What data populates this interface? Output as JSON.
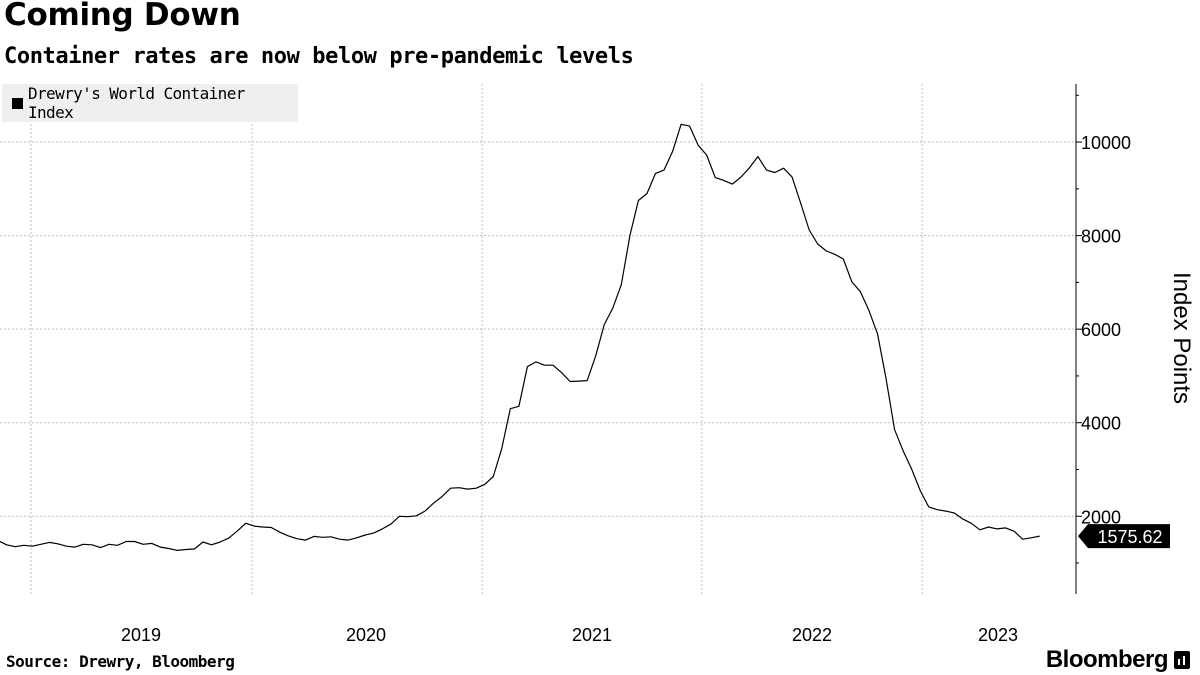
{
  "header": {
    "title": "Coming Down",
    "subtitle": "Container rates are now below pre-pandemic levels"
  },
  "footer": {
    "source": "Source: Drewry, Bloomberg",
    "logo": "Bloomberg"
  },
  "colors": {
    "line": "#000000",
    "grid": "#bdbdbd",
    "legend_bg": "#efefef",
    "badge_bg": "#000000",
    "badge_text": "#ffffff"
  },
  "chart_data": {
    "type": "line",
    "title": "Coming Down",
    "subtitle": "Container rates are now below pre-pandemic levels",
    "xlabel": "",
    "ylabel": "Index Points",
    "ylim": [
      0,
      11200
    ],
    "y_axis_side": "right",
    "yticks": [
      2000,
      4000,
      6000,
      8000,
      10000
    ],
    "ytick_labels": [
      "2000",
      "4000",
      "6000",
      "8000",
      "10000"
    ],
    "xtick_labels": [
      "2019",
      "2020",
      "2021",
      "2022",
      "2023"
    ],
    "grid": true,
    "legend_position": "top-left",
    "last_value_label": "1575.62",
    "series": [
      {
        "name": "Drewry's World Container Index",
        "points": [
          [
            "2018-06-07",
            1790
          ],
          [
            "2018-06-21",
            1710
          ],
          [
            "2018-07-05",
            1650
          ],
          [
            "2018-07-19",
            1630
          ],
          [
            "2018-08-02",
            1590
          ],
          [
            "2018-08-16",
            1780
          ],
          [
            "2018-08-30",
            1720
          ],
          [
            "2018-09-13",
            1760
          ],
          [
            "2018-09-27",
            1720
          ],
          [
            "2018-10-11",
            1640
          ],
          [
            "2018-10-25",
            1620
          ],
          [
            "2018-11-08",
            1480
          ],
          [
            "2018-11-22",
            1390
          ],
          [
            "2018-12-06",
            1350
          ],
          [
            "2018-12-20",
            1380
          ],
          [
            "2019-01-03",
            1360
          ],
          [
            "2019-01-17",
            1400
          ],
          [
            "2019-01-31",
            1440
          ],
          [
            "2019-02-14",
            1410
          ],
          [
            "2019-02-28",
            1360
          ],
          [
            "2019-03-14",
            1340
          ],
          [
            "2019-03-28",
            1400
          ],
          [
            "2019-04-11",
            1390
          ],
          [
            "2019-04-25",
            1330
          ],
          [
            "2019-05-09",
            1400
          ],
          [
            "2019-05-23",
            1380
          ],
          [
            "2019-06-06",
            1460
          ],
          [
            "2019-06-20",
            1460
          ],
          [
            "2019-07-04",
            1400
          ],
          [
            "2019-07-18",
            1420
          ],
          [
            "2019-08-01",
            1340
          ],
          [
            "2019-08-15",
            1310
          ],
          [
            "2019-08-29",
            1270
          ],
          [
            "2019-09-12",
            1290
          ],
          [
            "2019-09-26",
            1300
          ],
          [
            "2019-10-10",
            1450
          ],
          [
            "2019-10-24",
            1390
          ],
          [
            "2019-11-07",
            1450
          ],
          [
            "2019-11-21",
            1530
          ],
          [
            "2019-12-05",
            1680
          ],
          [
            "2019-12-19",
            1850
          ],
          [
            "2020-01-02",
            1790
          ],
          [
            "2020-01-16",
            1770
          ],
          [
            "2020-01-30",
            1760
          ],
          [
            "2020-02-13",
            1660
          ],
          [
            "2020-02-27",
            1580
          ],
          [
            "2020-03-12",
            1520
          ],
          [
            "2020-03-26",
            1490
          ],
          [
            "2020-04-09",
            1570
          ],
          [
            "2020-04-23",
            1550
          ],
          [
            "2020-05-07",
            1560
          ],
          [
            "2020-05-21",
            1510
          ],
          [
            "2020-06-04",
            1490
          ],
          [
            "2020-06-18",
            1540
          ],
          [
            "2020-07-02",
            1600
          ],
          [
            "2020-07-16",
            1640
          ],
          [
            "2020-07-30",
            1730
          ],
          [
            "2020-08-13",
            1830
          ],
          [
            "2020-08-27",
            2000
          ],
          [
            "2020-09-10",
            1990
          ],
          [
            "2020-09-24",
            2010
          ],
          [
            "2020-10-08",
            2110
          ],
          [
            "2020-10-22",
            2280
          ],
          [
            "2020-11-05",
            2420
          ],
          [
            "2020-11-19",
            2600
          ],
          [
            "2020-12-03",
            2610
          ],
          [
            "2020-12-17",
            2580
          ],
          [
            "2020-12-31",
            2600
          ],
          [
            "2021-01-14",
            2680
          ],
          [
            "2021-01-28",
            2850
          ],
          [
            "2021-02-11",
            3450
          ],
          [
            "2021-02-25",
            4300
          ],
          [
            "2021-03-11",
            4350
          ],
          [
            "2021-03-25",
            5200
          ],
          [
            "2021-04-08",
            5300
          ],
          [
            "2021-04-22",
            5230
          ],
          [
            "2021-05-06",
            5230
          ],
          [
            "2021-05-20",
            5070
          ],
          [
            "2021-06-03",
            4880
          ],
          [
            "2021-06-17",
            4890
          ],
          [
            "2021-07-01",
            4900
          ],
          [
            "2021-07-15",
            5430
          ],
          [
            "2021-07-29",
            6100
          ],
          [
            "2021-08-12",
            6450
          ],
          [
            "2021-08-26",
            6950
          ],
          [
            "2021-09-09",
            8000
          ],
          [
            "2021-09-23",
            8750
          ],
          [
            "2021-10-07",
            8900
          ],
          [
            "2021-10-21",
            9330
          ],
          [
            "2021-11-04",
            9400
          ],
          [
            "2021-11-18",
            9800
          ],
          [
            "2021-12-02",
            10380
          ],
          [
            "2021-12-16",
            10340
          ],
          [
            "2021-12-30",
            9930
          ],
          [
            "2022-01-13",
            9720
          ],
          [
            "2022-01-27",
            9240
          ],
          [
            "2022-02-10",
            9180
          ],
          [
            "2022-02-24",
            9100
          ],
          [
            "2022-03-10",
            9250
          ],
          [
            "2022-03-24",
            9450
          ],
          [
            "2022-04-07",
            9690
          ],
          [
            "2022-04-21",
            9400
          ],
          [
            "2022-05-05",
            9350
          ],
          [
            "2022-05-19",
            9440
          ],
          [
            "2022-06-02",
            9250
          ],
          [
            "2022-06-16",
            8700
          ],
          [
            "2022-06-30",
            8120
          ],
          [
            "2022-07-14",
            7820
          ],
          [
            "2022-07-28",
            7670
          ],
          [
            "2022-08-11",
            7600
          ],
          [
            "2022-08-25",
            7500
          ],
          [
            "2022-09-08",
            7010
          ],
          [
            "2022-09-22",
            6800
          ],
          [
            "2022-10-06",
            6400
          ],
          [
            "2022-10-20",
            5900
          ],
          [
            "2022-11-03",
            4950
          ],
          [
            "2022-11-17",
            3850
          ],
          [
            "2022-12-01",
            3400
          ],
          [
            "2022-12-15",
            3010
          ],
          [
            "2022-12-29",
            2550
          ],
          [
            "2023-01-12",
            2200
          ],
          [
            "2023-01-26",
            2140
          ],
          [
            "2023-02-09",
            2110
          ],
          [
            "2023-02-23",
            2070
          ],
          [
            "2023-03-09",
            1940
          ],
          [
            "2023-03-23",
            1850
          ],
          [
            "2023-04-06",
            1710
          ],
          [
            "2023-04-20",
            1770
          ],
          [
            "2023-05-04",
            1730
          ],
          [
            "2023-05-18",
            1750
          ],
          [
            "2023-06-01",
            1680
          ],
          [
            "2023-06-15",
            1510
          ],
          [
            "2023-06-29",
            1540
          ],
          [
            "2023-07-13",
            1575.62
          ]
        ]
      }
    ]
  }
}
